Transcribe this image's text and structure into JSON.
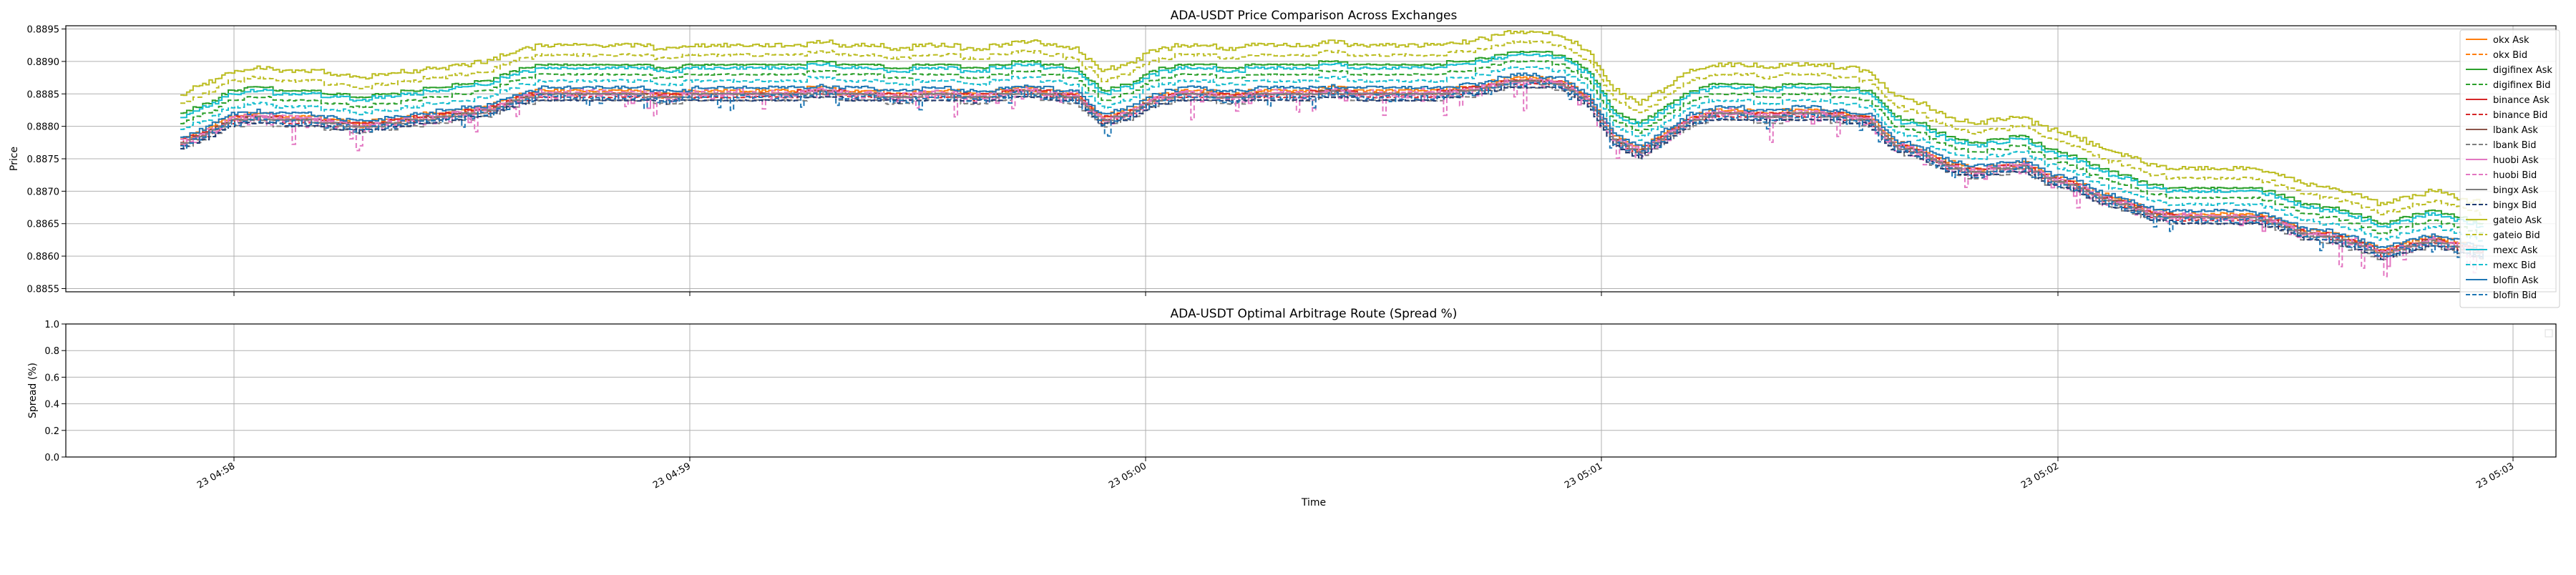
{
  "figure": {
    "background": "#ffffff"
  },
  "chart_data": [
    {
      "type": "line",
      "title": "ADA-USDT Price Comparison Across Exchanges",
      "xlabel": "",
      "ylabel": "Price",
      "x_ticks": [
        "23 04:58",
        "23 04:59",
        "23 05:00",
        "23 05:01",
        "23 05:02",
        "23 05:03"
      ],
      "y_ticks": [
        "0.8855",
        "0.8860",
        "0.8865",
        "0.8870",
        "0.8875",
        "0.8880",
        "0.8885",
        "0.8890",
        "0.8895"
      ],
      "ylim": [
        0.88545,
        0.88955
      ],
      "grid": true,
      "legend_position": "right",
      "key_x": [
        0,
        1,
        2,
        3,
        4,
        5,
        6,
        7,
        8,
        9,
        10,
        11,
        12,
        13,
        14,
        15,
        16,
        17,
        18,
        19,
        20,
        21,
        22,
        23,
        24,
        25,
        26,
        27,
        28,
        29,
        30,
        31,
        32,
        33,
        34,
        35,
        36,
        37,
        38,
        39,
        40,
        41,
        42,
        43,
        44,
        45,
        46,
        47,
        48,
        49,
        50,
        51,
        52,
        53,
        54,
        55,
        56,
        57,
        58,
        59,
        60,
        61,
        62,
        63,
        64,
        65,
        66,
        67,
        68,
        69,
        70,
        71,
        72,
        73,
        74,
        75,
        76,
        77,
        78,
        79,
        80,
        81,
        82,
        83,
        84,
        85,
        86,
        87,
        88,
        89,
        90
      ],
      "base_curve": [
        0.88775,
        0.8879,
        0.8881,
        0.88815,
        0.8881,
        0.8881,
        0.88805,
        0.888,
        0.88805,
        0.8881,
        0.88815,
        0.8882,
        0.88825,
        0.8884,
        0.8885,
        0.8885,
        0.8885,
        0.8885,
        0.8885,
        0.88845,
        0.8885,
        0.8885,
        0.8885,
        0.8885,
        0.8885,
        0.88855,
        0.8885,
        0.8885,
        0.88845,
        0.8885,
        0.8885,
        0.88845,
        0.8885,
        0.88855,
        0.8885,
        0.88845,
        0.8881,
        0.8882,
        0.8884,
        0.8885,
        0.8885,
        0.88845,
        0.8885,
        0.8885,
        0.8885,
        0.88855,
        0.8885,
        0.8885,
        0.8885,
        0.8885,
        0.88855,
        0.8886,
        0.8887,
        0.8887,
        0.88865,
        0.8884,
        0.8878,
        0.8876,
        0.88785,
        0.8881,
        0.8882,
        0.8882,
        0.88815,
        0.8882,
        0.8882,
        0.88815,
        0.8881,
        0.8877,
        0.8876,
        0.8874,
        0.8873,
        0.88735,
        0.8874,
        0.8872,
        0.8871,
        0.8869,
        0.8868,
        0.88665,
        0.8866,
        0.8866,
        0.8866,
        0.8866,
        0.8865,
        0.88635,
        0.8863,
        0.8862,
        0.88605,
        0.88615,
        0.88625,
        0.88615,
        0.88605
      ],
      "series": [
        {
          "name": "okx Ask",
          "color": "#ff7f0e",
          "dash": "solid",
          "offset": 5e-05,
          "noise": 2e-05
        },
        {
          "name": "okx Bid",
          "color": "#ff7f0e",
          "dash": "dashed",
          "offset": 0.0,
          "noise": 2e-05
        },
        {
          "name": "digifinex Ask",
          "color": "#2ca02c",
          "dash": "solid",
          "offset": 0.00045,
          "noise": 1e-05
        },
        {
          "name": "digifinex Bid",
          "color": "#2ca02c",
          "dash": "dashed",
          "offset": 0.0003,
          "noise": 1e-05
        },
        {
          "name": "binance Ask",
          "color": "#d62728",
          "dash": "solid",
          "offset": 2e-05,
          "noise": 1.5e-05
        },
        {
          "name": "binance Bid",
          "color": "#d62728",
          "dash": "dashed",
          "offset": -3e-05,
          "noise": 1e-05
        },
        {
          "name": "lbank Ask",
          "color": "#8c564b",
          "dash": "solid",
          "offset": 0.0,
          "noise": 1e-05
        },
        {
          "name": "lbank Bid",
          "color": "#7f7f7f",
          "dash": "dashed",
          "offset": -0.0001,
          "noise": 1e-05
        },
        {
          "name": "huobi Ask",
          "color": "#e377c2",
          "dash": "solid",
          "offset": 0.0,
          "noise": 4e-05
        },
        {
          "name": "huobi Bid",
          "color": "#e377c2",
          "dash": "dashed",
          "offset": -2e-05,
          "noise": 8e-05
        },
        {
          "name": "bingx Ask",
          "color": "#7f7f7f",
          "dash": "solid",
          "offset": -2e-05,
          "noise": 1e-05
        },
        {
          "name": "bingx Bid",
          "color": "#1f3b73",
          "dash": "dashed",
          "offset": -8e-05,
          "noise": 1e-05
        },
        {
          "name": "gateio Ask",
          "color": "#bcbd22",
          "dash": "solid",
          "offset": 0.00075,
          "noise": 3e-05
        },
        {
          "name": "gateio Bid",
          "color": "#bcbd22",
          "dash": "dashed",
          "offset": 0.0006,
          "noise": 2e-05
        },
        {
          "name": "mexc Ask",
          "color": "#17becf",
          "dash": "solid",
          "offset": 0.0004,
          "noise": 2e-05
        },
        {
          "name": "mexc Bid",
          "color": "#17becf",
          "dash": "dashed",
          "offset": 0.0002,
          "noise": 2e-05
        },
        {
          "name": "blofin Ask",
          "color": "#1f77b4",
          "dash": "solid",
          "offset": 8e-05,
          "noise": 2e-05
        },
        {
          "name": "blofin Bid",
          "color": "#1f77b4",
          "dash": "dashed",
          "offset": -5e-05,
          "noise": 4e-05
        }
      ]
    },
    {
      "type": "line",
      "title": "ADA-USDT Optimal Arbitrage Route (Spread %)",
      "xlabel": "Time",
      "ylabel": "Spread (%)",
      "x_ticks": [
        "23 04:58",
        "23 04:59",
        "23 05:00",
        "23 05:01",
        "23 05:02",
        "23 05:03"
      ],
      "y_ticks": [
        "0.0",
        "0.2",
        "0.4",
        "0.6",
        "0.8",
        "1.0"
      ],
      "ylim": [
        0.0,
        1.0
      ],
      "grid": true,
      "series": []
    }
  ]
}
